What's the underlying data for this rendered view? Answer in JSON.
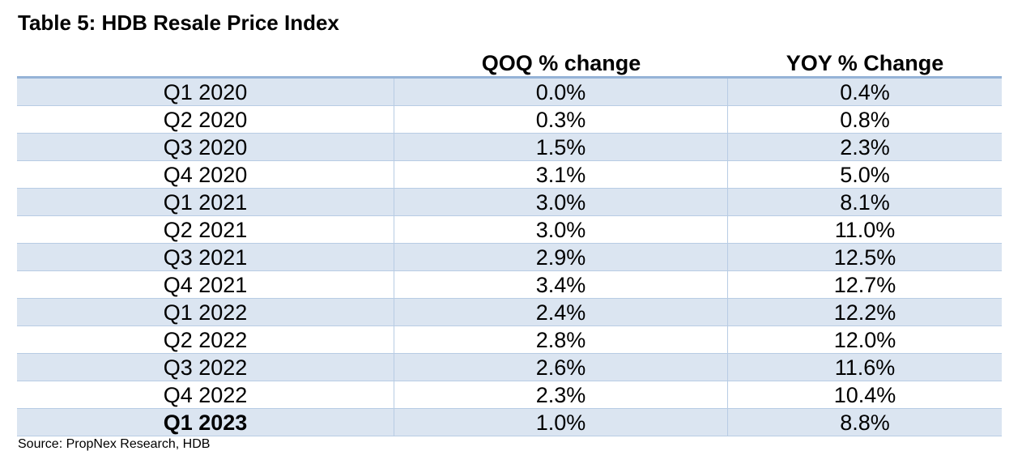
{
  "title": "Table 5: HDB Resale Price Index",
  "table": {
    "headers": {
      "period": "",
      "qoq": "QOQ % change",
      "yoy": "YOY % Change"
    },
    "rows": [
      {
        "period": "Q1 2020",
        "qoq": "0.0%",
        "yoy": "0.4%"
      },
      {
        "period": "Q2 2020",
        "qoq": "0.3%",
        "yoy": "0.8%"
      },
      {
        "period": "Q3 2020",
        "qoq": "1.5%",
        "yoy": "2.3%"
      },
      {
        "period": "Q4 2020",
        "qoq": "3.1%",
        "yoy": "5.0%"
      },
      {
        "period": "Q1 2021",
        "qoq": "3.0%",
        "yoy": "8.1%"
      },
      {
        "period": "Q2 2021",
        "qoq": "3.0%",
        "yoy": "11.0%"
      },
      {
        "period": "Q3 2021",
        "qoq": "2.9%",
        "yoy": "12.5%"
      },
      {
        "period": "Q4 2021",
        "qoq": "3.4%",
        "yoy": "12.7%"
      },
      {
        "period": "Q1 2022",
        "qoq": "2.4%",
        "yoy": "12.2%"
      },
      {
        "period": "Q2 2022",
        "qoq": "2.8%",
        "yoy": "12.0%"
      },
      {
        "period": "Q3 2022",
        "qoq": "2.6%",
        "yoy": "11.6%"
      },
      {
        "period": "Q4 2022",
        "qoq": "2.3%",
        "yoy": "10.4%"
      },
      {
        "period": "Q1 2023",
        "qoq": "1.0%",
        "yoy": "8.8%"
      }
    ]
  },
  "source": "Source: PropNex Research, HDB",
  "colors": {
    "band": "#dbe5f1",
    "header_rule": "#95b3d7",
    "grid": "#b8cce4"
  }
}
